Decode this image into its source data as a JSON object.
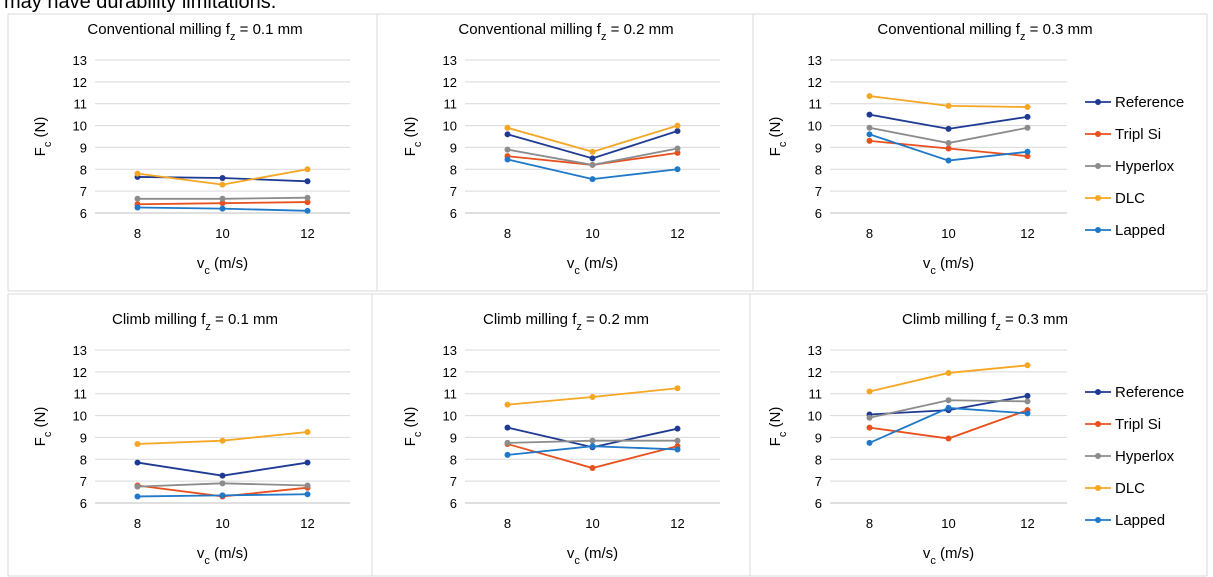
{
  "caption": "may have durability limitations.",
  "legend_colors": {
    "Reference": "#1f3a93",
    "Tripl Si": "#e8501e",
    "Hyperlox": "#8c8c8c",
    "DLC": "#f5a623",
    "Lapped": "#1f78c8"
  },
  "chart_data": [
    {
      "type": "line",
      "title_pre": "Conventional milling f",
      "title_sub": "z",
      "title_post": " = 0.1 mm",
      "x": [
        8,
        10,
        12
      ],
      "x_ticks": [
        "8",
        "10",
        "12"
      ],
      "xlabel_pre": "v",
      "xlabel_sub": "c",
      "xlabel_post": " (m/s)",
      "ylabel_pre": "F",
      "ylabel_sub": "c",
      "ylabel_post": " (N)",
      "ylim": [
        6,
        13
      ],
      "y_ticks": [
        "6",
        "7",
        "8",
        "9",
        "10",
        "11",
        "12",
        "13"
      ],
      "grid": true,
      "legend": "none",
      "series": [
        {
          "name": "Reference",
          "values": [
            7.65,
            7.6,
            7.45
          ]
        },
        {
          "name": "Tripl Si",
          "values": [
            6.4,
            6.45,
            6.5
          ]
        },
        {
          "name": "Hyperlox",
          "values": [
            6.65,
            6.65,
            6.7
          ]
        },
        {
          "name": "DLC",
          "values": [
            7.8,
            7.3,
            8.0
          ]
        },
        {
          "name": "Lapped",
          "values": [
            6.25,
            6.2,
            6.1
          ]
        }
      ]
    },
    {
      "type": "line",
      "title_pre": "Conventional milling f",
      "title_sub": "z",
      "title_post": " = 0.2 mm",
      "x": [
        8,
        10,
        12
      ],
      "x_ticks": [
        "8",
        "10",
        "12"
      ],
      "xlabel_pre": "v",
      "xlabel_sub": "c",
      "xlabel_post": " (m/s)",
      "ylabel_pre": "F",
      "ylabel_sub": "c",
      "ylabel_post": " (N)",
      "ylim": [
        6,
        13
      ],
      "y_ticks": [
        "6",
        "7",
        "8",
        "9",
        "10",
        "11",
        "12",
        "13"
      ],
      "grid": true,
      "legend": "none",
      "series": [
        {
          "name": "Reference",
          "values": [
            9.6,
            8.5,
            9.75
          ]
        },
        {
          "name": "Tripl Si",
          "values": [
            8.6,
            8.2,
            8.75
          ]
        },
        {
          "name": "Hyperlox",
          "values": [
            8.9,
            8.2,
            8.95
          ]
        },
        {
          "name": "DLC",
          "values": [
            9.9,
            8.8,
            10.0
          ]
        },
        {
          "name": "Lapped",
          "values": [
            8.45,
            7.55,
            8.0
          ]
        }
      ]
    },
    {
      "type": "line",
      "title_pre": "Conventional milling f",
      "title_sub": "z",
      "title_post": " = 0.3 mm",
      "x": [
        8,
        10,
        12
      ],
      "x_ticks": [
        "8",
        "10",
        "12"
      ],
      "xlabel_pre": "v",
      "xlabel_sub": "c",
      "xlabel_post": " (m/s)",
      "ylabel_pre": "F",
      "ylabel_sub": "c",
      "ylabel_post": " (N)",
      "ylim": [
        6,
        13
      ],
      "y_ticks": [
        "6",
        "7",
        "8",
        "9",
        "10",
        "11",
        "12",
        "13"
      ],
      "grid": true,
      "legend": "right",
      "series": [
        {
          "name": "Reference",
          "values": [
            10.5,
            9.85,
            10.4
          ]
        },
        {
          "name": "Tripl Si",
          "values": [
            9.3,
            8.95,
            8.6
          ]
        },
        {
          "name": "Hyperlox",
          "values": [
            9.9,
            9.2,
            9.9
          ]
        },
        {
          "name": "DLC",
          "values": [
            11.35,
            10.9,
            10.85
          ]
        },
        {
          "name": "Lapped",
          "values": [
            9.6,
            8.4,
            8.8
          ]
        }
      ]
    },
    {
      "type": "line",
      "title_pre": "Climb milling f",
      "title_sub": "z",
      "title_post": " = 0.1 mm",
      "x": [
        8,
        10,
        12
      ],
      "x_ticks": [
        "8",
        "10",
        "12"
      ],
      "xlabel_pre": "v",
      "xlabel_sub": "c",
      "xlabel_post": " (m/s)",
      "ylabel_pre": "F",
      "ylabel_sub": "c",
      "ylabel_post": " (N)",
      "ylim": [
        6,
        13
      ],
      "y_ticks": [
        "6",
        "7",
        "8",
        "9",
        "10",
        "11",
        "12",
        "13"
      ],
      "grid": true,
      "legend": "none",
      "series": [
        {
          "name": "Reference",
          "values": [
            7.85,
            7.25,
            7.85
          ]
        },
        {
          "name": "Tripl Si",
          "values": [
            6.8,
            6.3,
            6.7
          ]
        },
        {
          "name": "Hyperlox",
          "values": [
            6.75,
            6.9,
            6.8
          ]
        },
        {
          "name": "DLC",
          "values": [
            8.7,
            8.85,
            9.25
          ]
        },
        {
          "name": "Lapped",
          "values": [
            6.3,
            6.35,
            6.4
          ]
        }
      ]
    },
    {
      "type": "line",
      "title_pre": "Climb milling f",
      "title_sub": "z",
      "title_post": " = 0.2 mm",
      "x": [
        8,
        10,
        12
      ],
      "x_ticks": [
        "8",
        "10",
        "12"
      ],
      "xlabel_pre": "v",
      "xlabel_sub": "c",
      "xlabel_post": " (m/s)",
      "ylabel_pre": "F",
      "ylabel_sub": "c",
      "ylabel_post": " (N)",
      "ylim": [
        6,
        13
      ],
      "y_ticks": [
        "6",
        "7",
        "8",
        "9",
        "10",
        "11",
        "12",
        "13"
      ],
      "grid": true,
      "legend": "none",
      "series": [
        {
          "name": "Reference",
          "values": [
            9.45,
            8.55,
            9.4
          ]
        },
        {
          "name": "Tripl Si",
          "values": [
            8.7,
            7.6,
            8.6
          ]
        },
        {
          "name": "Hyperlox",
          "values": [
            8.75,
            8.85,
            8.85
          ]
        },
        {
          "name": "DLC",
          "values": [
            10.5,
            10.85,
            11.25
          ]
        },
        {
          "name": "Lapped",
          "values": [
            8.2,
            8.6,
            8.45
          ]
        }
      ]
    },
    {
      "type": "line",
      "title_pre": "Climb milling f",
      "title_sub": "z",
      "title_post": " = 0.3 mm",
      "x": [
        8,
        10,
        12
      ],
      "x_ticks": [
        "8",
        "10",
        "12"
      ],
      "xlabel_pre": "v",
      "xlabel_sub": "c",
      "xlabel_post": " (m/s)",
      "ylabel_pre": "F",
      "ylabel_sub": "c",
      "ylabel_post": " (N)",
      "ylim": [
        6,
        13
      ],
      "y_ticks": [
        "6",
        "7",
        "8",
        "9",
        "10",
        "11",
        "12",
        "13"
      ],
      "grid": true,
      "legend": "right",
      "series": [
        {
          "name": "Reference",
          "values": [
            10.05,
            10.25,
            10.9
          ]
        },
        {
          "name": "Tripl Si",
          "values": [
            9.45,
            8.95,
            10.25
          ]
        },
        {
          "name": "Hyperlox",
          "values": [
            9.9,
            10.7,
            10.65
          ]
        },
        {
          "name": "DLC",
          "values": [
            11.1,
            11.95,
            12.3
          ]
        },
        {
          "name": "Lapped",
          "values": [
            8.75,
            10.35,
            10.1
          ]
        }
      ]
    }
  ]
}
